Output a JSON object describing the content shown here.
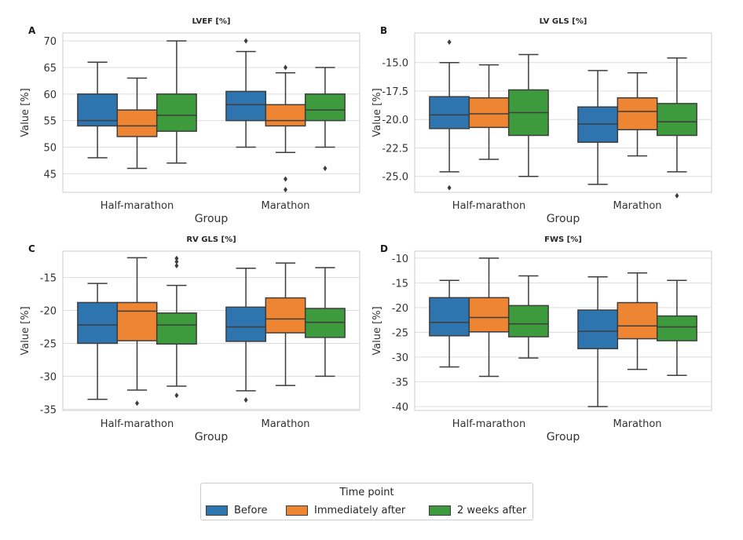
{
  "legend": {
    "title": "Time point",
    "entries": [
      {
        "label": "Before",
        "color": "#2e75b0"
      },
      {
        "label": "Immediately after",
        "color": "#ee8532"
      },
      {
        "label": "2 weeks after",
        "color": "#3d9b3d"
      }
    ]
  },
  "chart_data": [
    {
      "panel": "A",
      "title": "LVEF [%]",
      "type": "box",
      "xlabel": "Group",
      "ylabel": "Value [%]",
      "categories": [
        "Half-marathon",
        "Marathon"
      ],
      "ylim": [
        41.5,
        71.5
      ],
      "yticks": [
        45,
        50,
        55,
        60,
        65,
        70
      ],
      "series": [
        {
          "name": "Before",
          "boxes": [
            {
              "min": 48,
              "q1": 54,
              "median": 55,
              "q3": 60,
              "max": 66,
              "outliers": []
            },
            {
              "min": 50,
              "q1": 55,
              "median": 58,
              "q3": 60.5,
              "max": 68,
              "outliers": [
                70
              ]
            }
          ]
        },
        {
          "name": "Immediately after",
          "boxes": [
            {
              "min": 46,
              "q1": 52,
              "median": 54,
              "q3": 57,
              "max": 63,
              "outliers": []
            },
            {
              "min": 49,
              "q1": 54,
              "median": 55,
              "q3": 58,
              "max": 64,
              "outliers": [
                65,
                44,
                42
              ]
            }
          ]
        },
        {
          "name": "2 weeks after",
          "boxes": [
            {
              "min": 47,
              "q1": 53,
              "median": 56,
              "q3": 60,
              "max": 70,
              "outliers": []
            },
            {
              "min": 50,
              "q1": 55,
              "median": 57,
              "q3": 60,
              "max": 65,
              "outliers": [
                46
              ]
            }
          ]
        }
      ]
    },
    {
      "panel": "B",
      "title": "LV GLS [%]",
      "type": "box",
      "xlabel": "Group",
      "ylabel": "Value [%]",
      "categories": [
        "Half-marathon",
        "Marathon"
      ],
      "ylim": [
        -26.4,
        -12.4
      ],
      "yticks": [
        -25.0,
        -22.5,
        -20.0,
        -17.5,
        -15.0
      ],
      "series": [
        {
          "name": "Before",
          "boxes": [
            {
              "min": -24.6,
              "q1": -20.8,
              "median": -19.6,
              "q3": -18.0,
              "max": -15.0,
              "outliers": [
                -13.2,
                -26.0
              ]
            },
            {
              "min": -25.7,
              "q1": -22.0,
              "median": -20.4,
              "q3": -18.9,
              "max": -15.7,
              "outliers": []
            }
          ]
        },
        {
          "name": "Immediately after",
          "boxes": [
            {
              "min": -23.5,
              "q1": -20.7,
              "median": -19.5,
              "q3": -18.1,
              "max": -15.2,
              "outliers": []
            },
            {
              "min": -23.2,
              "q1": -20.9,
              "median": -19.3,
              "q3": -18.1,
              "max": -15.9,
              "outliers": []
            }
          ]
        },
        {
          "name": "2 weeks after",
          "boxes": [
            {
              "min": -25.0,
              "q1": -21.4,
              "median": -19.4,
              "q3": -17.4,
              "max": -14.3,
              "outliers": []
            },
            {
              "min": -24.6,
              "q1": -21.4,
              "median": -20.2,
              "q3": -18.6,
              "max": -14.6,
              "outliers": [
                -26.7
              ]
            }
          ]
        }
      ]
    },
    {
      "panel": "C",
      "title": "RV GLS [%]",
      "type": "box",
      "xlabel": "Group",
      "ylabel": "Value [%]",
      "categories": [
        "Half-marathon",
        "Marathon"
      ],
      "ylim": [
        -35.2,
        -11.0
      ],
      "yticks": [
        -35,
        -30,
        -25,
        -20,
        -15
      ],
      "series": [
        {
          "name": "Before",
          "boxes": [
            {
              "min": -33.5,
              "q1": -25.0,
              "median": -22.2,
              "q3": -18.8,
              "max": -15.9,
              "outliers": []
            },
            {
              "min": -32.2,
              "q1": -24.7,
              "median": -22.5,
              "q3": -19.5,
              "max": -13.6,
              "outliers": [
                -33.6
              ]
            }
          ]
        },
        {
          "name": "Immediately after",
          "boxes": [
            {
              "min": -32.1,
              "q1": -24.6,
              "median": -20.1,
              "q3": -18.8,
              "max": -12.0,
              "outliers": [
                -34.1
              ]
            },
            {
              "min": -31.4,
              "q1": -23.4,
              "median": -21.3,
              "q3": -18.1,
              "max": -12.8,
              "outliers": []
            }
          ]
        },
        {
          "name": "2 weeks after",
          "boxes": [
            {
              "min": -31.5,
              "q1": -25.1,
              "median": -22.2,
              "q3": -20.4,
              "max": -16.2,
              "outliers": [
                -12.1,
                -12.6,
                -13.2,
                -32.9
              ]
            },
            {
              "min": -30.0,
              "q1": -24.1,
              "median": -21.8,
              "q3": -19.7,
              "max": -13.5,
              "outliers": []
            }
          ]
        }
      ]
    },
    {
      "panel": "D",
      "title": "FWS [%]",
      "type": "box",
      "xlabel": "Group",
      "ylabel": "Value [%]",
      "categories": [
        "Half-marathon",
        "Marathon"
      ],
      "ylim": [
        -40.8,
        -8.6
      ],
      "yticks": [
        -40,
        -35,
        -30,
        -25,
        -20,
        -15,
        -10
      ],
      "series": [
        {
          "name": "Before",
          "boxes": [
            {
              "min": -32.0,
              "q1": -25.7,
              "median": -23.0,
              "q3": -18.0,
              "max": -14.5,
              "outliers": []
            },
            {
              "min": -40.0,
              "q1": -28.3,
              "median": -24.8,
              "q3": -20.5,
              "max": -13.8,
              "outliers": []
            }
          ]
        },
        {
          "name": "Immediately after",
          "boxes": [
            {
              "min": -33.9,
              "q1": -24.9,
              "median": -22.0,
              "q3": -18.0,
              "max": -10.0,
              "outliers": []
            },
            {
              "min": -32.5,
              "q1": -26.3,
              "median": -23.7,
              "q3": -19.0,
              "max": -13.0,
              "outliers": []
            }
          ]
        },
        {
          "name": "2 weeks after",
          "boxes": [
            {
              "min": -30.2,
              "q1": -25.9,
              "median": -23.3,
              "q3": -19.6,
              "max": -13.6,
              "outliers": []
            },
            {
              "min": -33.7,
              "q1": -26.7,
              "median": -23.9,
              "q3": -21.7,
              "max": -14.5,
              "outliers": []
            }
          ]
        }
      ]
    }
  ]
}
